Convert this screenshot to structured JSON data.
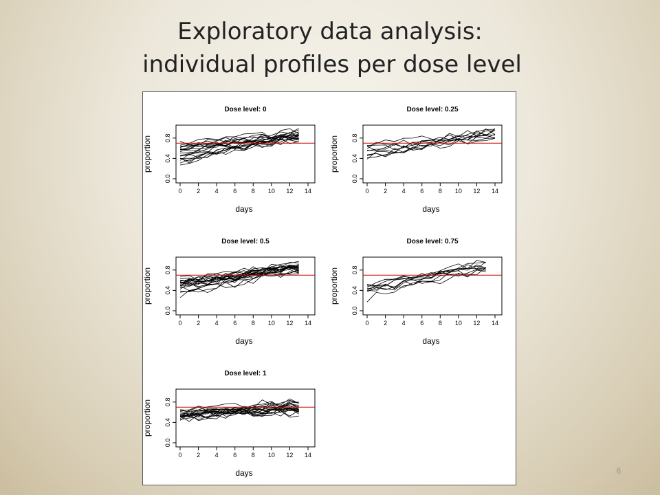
{
  "slide": {
    "title_line1": "Exploratory data analysis:",
    "title_line2": "individual profiles per dose level",
    "page_number": "6"
  },
  "colors": {
    "profile_line": "#000000",
    "reference_line": "#d40000",
    "panel_background": "#ffffff",
    "slide_background": "#e7e1d1"
  },
  "chart_data": [
    {
      "type": "line",
      "title": "Dose level: 0",
      "xlabel": "days",
      "ylabel": "proportion",
      "xticks": [
        "0",
        "2",
        "4",
        "6",
        "8",
        "10",
        "12",
        "14"
      ],
      "yticks": [
        "0.0",
        "0.4",
        "0.8"
      ],
      "xlim": [
        0,
        14
      ],
      "ylim": [
        0,
        1
      ],
      "reference_line_y": 0.7,
      "n_profiles": 20,
      "days": [
        0,
        1,
        2,
        3,
        4,
        5,
        6,
        7,
        8,
        9,
        10,
        11,
        12,
        13
      ],
      "profile_range_start": [
        0.3,
        0.72
      ],
      "profile_range_end": [
        0.75,
        0.95
      ]
    },
    {
      "type": "line",
      "title": "Dose level: 0.25",
      "xlabel": "days",
      "ylabel": "proportion",
      "xticks": [
        "0",
        "2",
        "4",
        "6",
        "8",
        "10",
        "12",
        "14"
      ],
      "yticks": [
        "0.0",
        "0.4",
        "0.8"
      ],
      "xlim": [
        0,
        14
      ],
      "ylim": [
        0,
        1
      ],
      "reference_line_y": 0.7,
      "n_profiles": 10,
      "days": [
        0,
        1,
        2,
        3,
        4,
        5,
        6,
        7,
        8,
        9,
        10,
        11,
        12,
        13,
        14
      ],
      "profile_range_start": [
        0.4,
        0.65
      ],
      "profile_range_end": [
        0.78,
        0.95
      ]
    },
    {
      "type": "line",
      "title": "Dose level: 0.5",
      "xlabel": "days",
      "ylabel": "proportion",
      "xticks": [
        "0",
        "2",
        "4",
        "6",
        "8",
        "10",
        "12",
        "14"
      ],
      "yticks": [
        "0.0",
        "0.4",
        "0.8"
      ],
      "xlim": [
        0,
        14
      ],
      "ylim": [
        0,
        1
      ],
      "reference_line_y": 0.7,
      "n_profiles": 20,
      "days": [
        0,
        1,
        2,
        3,
        4,
        5,
        6,
        7,
        8,
        9,
        10,
        11,
        12,
        13
      ],
      "profile_range_start": [
        0.3,
        0.65
      ],
      "profile_range_end": [
        0.75,
        0.95
      ]
    },
    {
      "type": "line",
      "title": "Dose level: 0.75",
      "xlabel": "days",
      "ylabel": "proportion",
      "xticks": [
        "0",
        "2",
        "4",
        "6",
        "8",
        "10",
        "12",
        "14"
      ],
      "yticks": [
        "0.0",
        "0.4",
        "0.8"
      ],
      "xlim": [
        0,
        14
      ],
      "ylim": [
        0,
        1
      ],
      "reference_line_y": 0.7,
      "n_profiles": 10,
      "days": [
        0,
        1,
        2,
        3,
        4,
        5,
        6,
        7,
        8,
        9,
        10,
        11,
        12,
        13
      ],
      "profile_range_start": [
        0.25,
        0.55
      ],
      "profile_range_end": [
        0.78,
        1.0
      ]
    },
    {
      "type": "line",
      "title": "Dose level: 1",
      "xlabel": "days",
      "ylabel": "proportion",
      "xticks": [
        "0",
        "2",
        "4",
        "6",
        "8",
        "10",
        "12",
        "14"
      ],
      "yticks": [
        "0.0",
        "0.4",
        "0.8"
      ],
      "xlim": [
        0,
        14
      ],
      "ylim": [
        0,
        1
      ],
      "reference_line_y": 0.7,
      "n_profiles": 20,
      "days": [
        0,
        1,
        2,
        3,
        4,
        5,
        6,
        7,
        8,
        9,
        10,
        11,
        12,
        13
      ],
      "profile_range_start": [
        0.45,
        0.65
      ],
      "profile_range_end": [
        0.55,
        0.85
      ]
    }
  ]
}
